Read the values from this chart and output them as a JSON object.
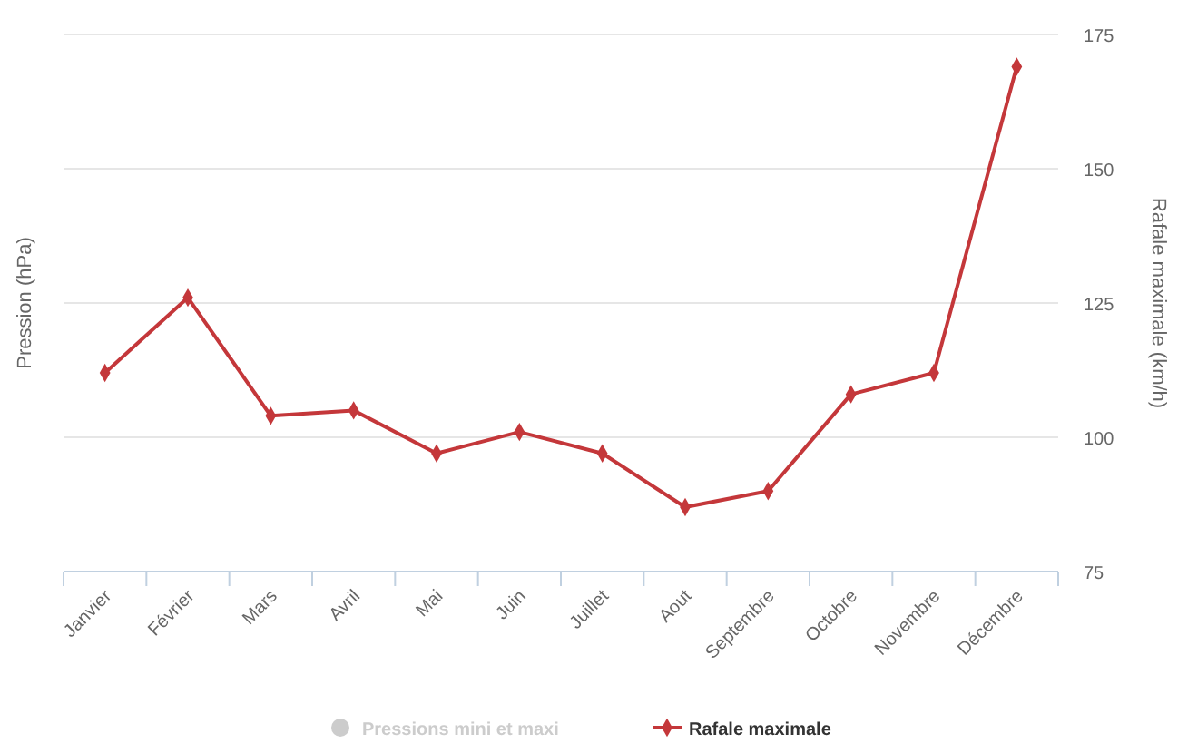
{
  "chart_data": {
    "type": "line",
    "ylabel": "Pression (hPa)",
    "y2label": "Rafale maximale (km/h)",
    "categories": [
      "Janvier",
      "Février",
      "Mars",
      "Avril",
      "Mai",
      "Juin",
      "Juillet",
      "Aout",
      "Septembre",
      "Octobre",
      "Novembre",
      "Décembre"
    ],
    "series": [
      {
        "name": "Pressions mini et maxi",
        "type": "area",
        "color": "#cccccc",
        "values": [
          null,
          null,
          null,
          null,
          null,
          null,
          null,
          null,
          null,
          null,
          null,
          null
        ]
      },
      {
        "name": "Rafale maximale",
        "axis": "y2",
        "color": "#c4373a",
        "values": [
          112,
          126,
          104,
          105,
          97,
          101,
          97,
          87,
          90,
          108,
          112,
          169
        ]
      }
    ],
    "y2lim": [
      75,
      175
    ],
    "y2ticks": [
      75,
      100,
      125,
      150,
      175
    ],
    "grid": "y",
    "legend": "bottom",
    "marker": "diamond"
  }
}
